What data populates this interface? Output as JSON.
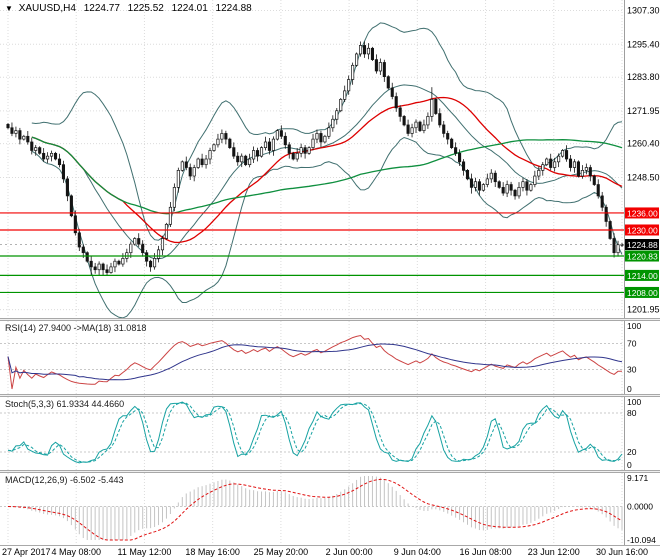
{
  "window": {
    "symbol": "XAUUSD,H4",
    "marker_icon": "▼"
  },
  "colors": {
    "background": "#ffffff",
    "grid": "#dcdcdc",
    "axis_border": "#9e9e9e",
    "candle": "#141414"
  },
  "chart_data": {
    "type": "candlestick",
    "symbol": "XAUUSD",
    "timeframe": "H4",
    "last_bar": {
      "open": "1224.77",
      "high": "1225.52",
      "low": "1224.01",
      "close": "1224.88"
    },
    "price_axis": {
      "ticks": [
        1307.3,
        1295.4,
        1283.8,
        1271.95,
        1260.4,
        1248.5,
        1201.95
      ],
      "min": 1199.0,
      "max": 1311.0
    },
    "x_labels": [
      "27 Apr 2017",
      "4 May 08:00",
      "11 May 12:00",
      "18 May 16:00",
      "25 May 20:00",
      "2 Jun 00:00",
      "9 Jun 04:00",
      "16 Jun 08:00",
      "23 Jun 12:00",
      "30 Jun 16:00"
    ],
    "closes": [
      1266,
      1264,
      1265,
      1262,
      1263,
      1261,
      1258,
      1259,
      1257,
      1255,
      1256,
      1257,
      1255,
      1253,
      1248,
      1242,
      1235,
      1229,
      1224,
      1222,
      1219,
      1217,
      1216,
      1218,
      1216,
      1215,
      1217,
      1219,
      1218,
      1220,
      1222,
      1225,
      1227,
      1225,
      1222,
      1219,
      1217,
      1220,
      1223,
      1227,
      1232,
      1238,
      1245,
      1251,
      1254,
      1252,
      1249,
      1252,
      1255,
      1253,
      1255,
      1258,
      1260,
      1262,
      1264,
      1262,
      1259,
      1256,
      1254,
      1256,
      1253,
      1255,
      1258,
      1256,
      1259,
      1261,
      1258,
      1262,
      1265,
      1263,
      1260,
      1257,
      1255,
      1257,
      1259,
      1257,
      1259,
      1262,
      1264,
      1261,
      1263,
      1266,
      1269,
      1272,
      1276,
      1279,
      1283,
      1288,
      1292,
      1295,
      1292,
      1294,
      1290,
      1286,
      1289,
      1284,
      1280,
      1277,
      1273,
      1270,
      1267,
      1264,
      1266,
      1268,
      1265,
      1267,
      1270,
      1276,
      1271,
      1267,
      1264,
      1262,
      1259,
      1257,
      1254,
      1251,
      1248,
      1245,
      1247,
      1244,
      1246,
      1248,
      1250,
      1247,
      1245,
      1243,
      1246,
      1244,
      1242,
      1245,
      1247,
      1244,
      1246,
      1249,
      1251,
      1253,
      1255,
      1252,
      1254,
      1256,
      1258,
      1255,
      1252,
      1254,
      1249,
      1251,
      1252,
      1249,
      1246,
      1242,
      1238,
      1233,
      1227,
      1222,
      1224.8,
      1224.88
    ],
    "wick_overrides": {
      "21": {
        "l": 1214.2
      },
      "24": {
        "l": 1214.0
      },
      "26": {
        "l": 1214.6
      },
      "36": {
        "l": 1215.3
      },
      "89": {
        "h": 1296.4
      },
      "91": {
        "h": 1295.8
      },
      "107": {
        "h": 1280.3
      },
      "117": {
        "l": 1242.8
      },
      "128": {
        "l": 1240.7
      },
      "153": {
        "l": 1220.3
      },
      "155": {
        "h": 1225.52,
        "l": 1224.01
      }
    },
    "levels": [
      {
        "price": 1236.0,
        "label": "1236.00",
        "color": "#f20000",
        "kind": "resistance"
      },
      {
        "price": 1230.0,
        "label": "1230.00",
        "color": "#f20000",
        "kind": "resistance"
      },
      {
        "price": 1220.83,
        "label": "1220.83",
        "color": "#009400",
        "kind": "support"
      },
      {
        "price": 1214.0,
        "label": "1214.00",
        "color": "#009400",
        "kind": "support"
      },
      {
        "price": 1208.0,
        "label": "1208.00",
        "color": "#009400",
        "kind": "support"
      }
    ],
    "bid_tag": {
      "price": 1224.88,
      "label": "1224.88",
      "bg": "#000000"
    },
    "overlays": {
      "bollinger": {
        "period": 20,
        "deviation": 2,
        "color": "#417070"
      },
      "ma_fast": {
        "period": 30,
        "color": "#dd0000"
      },
      "ma_slow": {
        "period": 90,
        "color": "#0f8f3f"
      }
    },
    "panels": {
      "rsi": {
        "label": "RSI(14) 27.9400 ->MA(18) 31.0818",
        "period": 14,
        "ma_period": 18,
        "value": 27.94,
        "ma_value": 31.0818,
        "ticks": [
          100,
          70,
          30,
          0
        ],
        "levels": [
          70,
          30
        ],
        "line_color": "#cc4444",
        "ma_color": "#30358c"
      },
      "stoch": {
        "label": "Stoch(5,3,3) 61.9334 44.4660",
        "k_period": 5,
        "d_period": 3,
        "slowing": 3,
        "k_value": 61.9334,
        "d_value": 44.466,
        "ticks": [
          100,
          80,
          20,
          0
        ],
        "levels": [
          80,
          20
        ],
        "k_color": "#17a2a2",
        "d_color": "#17a2a2"
      },
      "macd": {
        "label": "MACD(12,26,9) -6.502 -5.443",
        "fast": 12,
        "slow": 26,
        "signal_period": 9,
        "macd_value": -6.502,
        "signal_value": -5.443,
        "ticks": [
          "9.171",
          "0.0000",
          "-10.094"
        ],
        "tick_values": [
          9.171,
          0,
          -10.094
        ],
        "range": [
          -10.094,
          9.171
        ],
        "hist_color": "#c4c4c4",
        "signal_color": "#e01010"
      }
    }
  }
}
